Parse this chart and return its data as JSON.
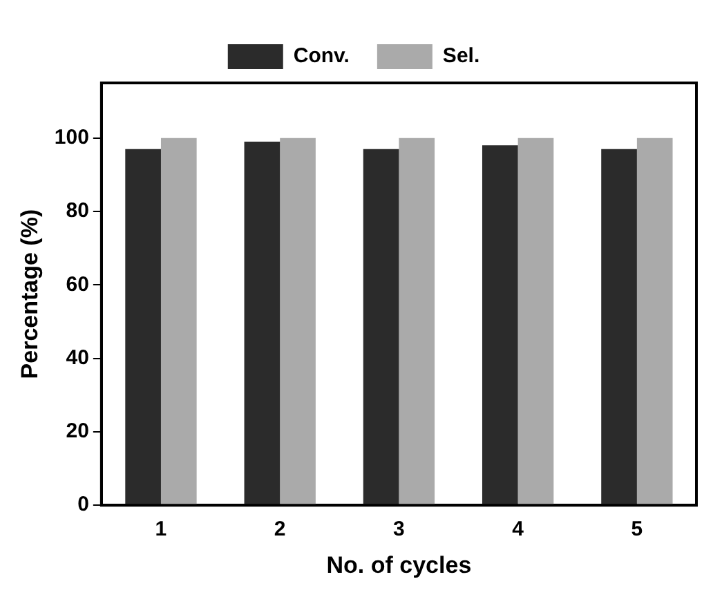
{
  "chart_data": {
    "type": "bar",
    "xlabel": "No. of cycles",
    "ylabel": "Percentage (%)",
    "categories": [
      "1",
      "2",
      "3",
      "4",
      "5"
    ],
    "series": [
      {
        "name": "Conv.",
        "color": "#2b2b2b",
        "values": [
          97,
          99,
          97,
          98,
          97
        ]
      },
      {
        "name": "Sel.",
        "color": "#aaaaaa",
        "values": [
          100,
          100,
          100,
          100,
          100
        ]
      }
    ],
    "ylim": [
      0,
      115
    ],
    "yticks": [
      0,
      20,
      40,
      60,
      80,
      100
    ],
    "grid": false,
    "legend": "top"
  }
}
